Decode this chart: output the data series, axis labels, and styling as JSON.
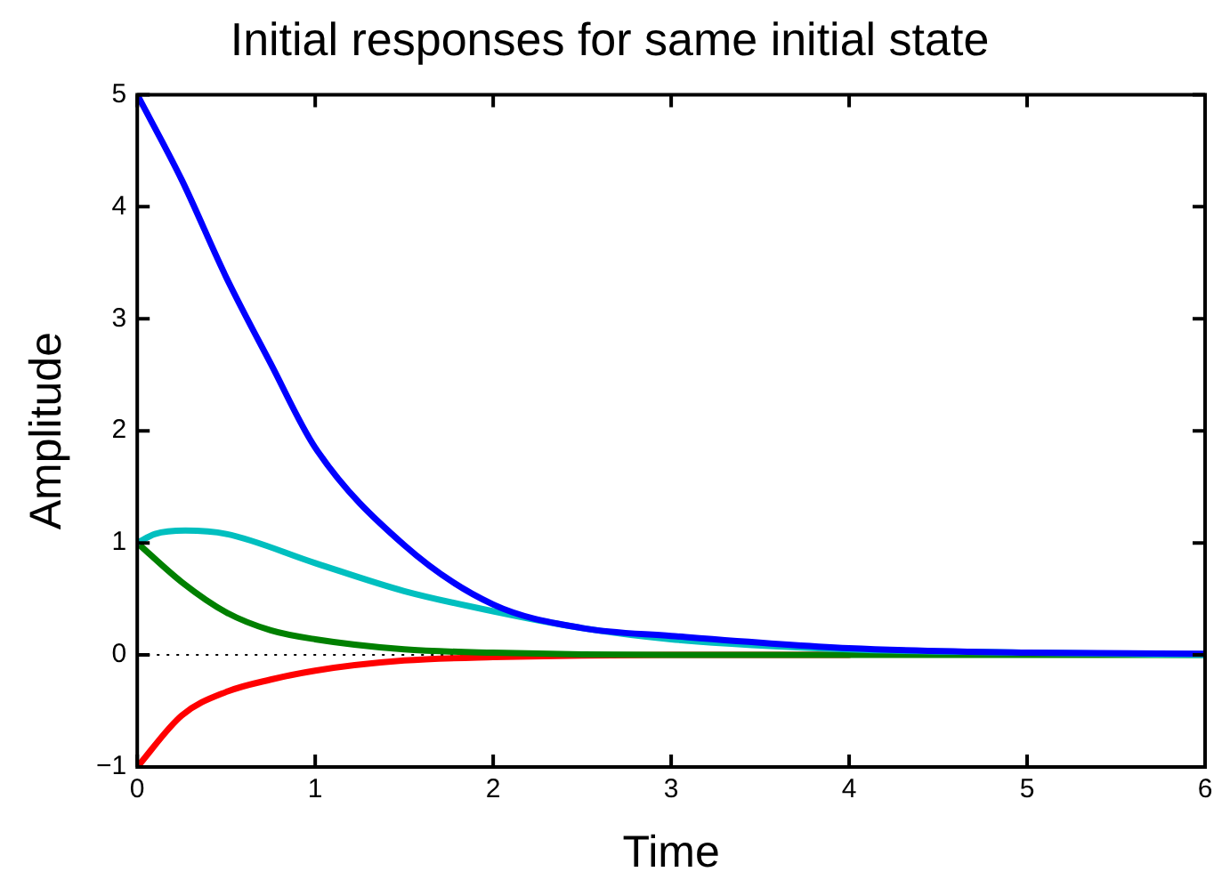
{
  "chart_data": {
    "type": "line",
    "title": "Initial responses for same initial state",
    "xlabel": "Time",
    "ylabel": "Amplitude",
    "xlim": [
      0,
      6
    ],
    "ylim": [
      -1,
      5
    ],
    "xticks": [
      0,
      1,
      2,
      3,
      4,
      5,
      6
    ],
    "yticks": [
      -1,
      0,
      1,
      2,
      3,
      4,
      5
    ],
    "grid": false,
    "legend": false,
    "marker": "none",
    "line_style": "solid",
    "ref_lines": [
      {
        "axis": "y",
        "value": 0,
        "color": "#000000",
        "line_style": "dotted"
      }
    ],
    "series": [
      {
        "color": "#0000ff",
        "x": [
          0,
          0.25,
          0.5,
          0.75,
          1,
          1.5,
          2,
          2.5,
          3,
          4,
          5,
          6
        ],
        "values": [
          5,
          4.24,
          3.37,
          2.6,
          1.85,
          0.98,
          0.45,
          0.24,
          0.17,
          0.06,
          0.02,
          0.01
        ]
      },
      {
        "color": "#00bfbf",
        "x": [
          0,
          0.1,
          0.27,
          0.5,
          1,
          1.5,
          2,
          2.5,
          3,
          4,
          5,
          6
        ],
        "values": [
          1,
          1.08,
          1.11,
          1.08,
          0.82,
          0.57,
          0.39,
          0.24,
          0.14,
          0.05,
          0.02,
          0
        ]
      },
      {
        "color": "#008000",
        "x": [
          0,
          0.25,
          0.5,
          0.75,
          1,
          1.5,
          2,
          3,
          4,
          5,
          6
        ],
        "values": [
          1,
          0.65,
          0.38,
          0.22,
          0.14,
          0.05,
          0.02,
          0,
          0,
          0,
          0
        ]
      },
      {
        "color": "#ff0000",
        "x": [
          0,
          0.25,
          0.5,
          0.75,
          1,
          1.5,
          2,
          3,
          4
        ],
        "values": [
          -1,
          -0.54,
          -0.33,
          -0.22,
          -0.14,
          -0.05,
          -0.02,
          0,
          0
        ]
      }
    ]
  }
}
